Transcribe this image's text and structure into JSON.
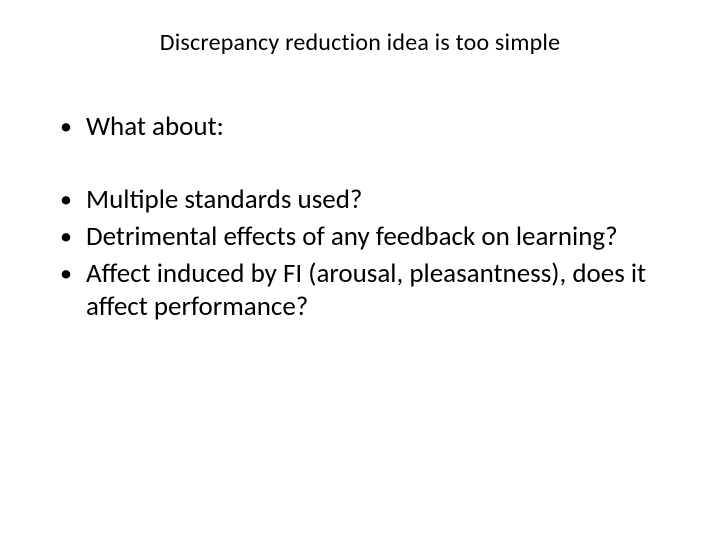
{
  "slide": {
    "title": "Discrepancy reduction idea is too simple",
    "title_fontsize": 24,
    "title_color": "#000000",
    "body_fontsize": 27,
    "body_color": "#000000",
    "background_color": "#ffffff",
    "bullets_group1": [
      "What about:"
    ],
    "bullets_group2": [
      "Multiple standards used?",
      "Detrimental effects of any feedback on learning?",
      "Affect induced by FI (arousal, pleasantness), does it affect performance?"
    ]
  }
}
